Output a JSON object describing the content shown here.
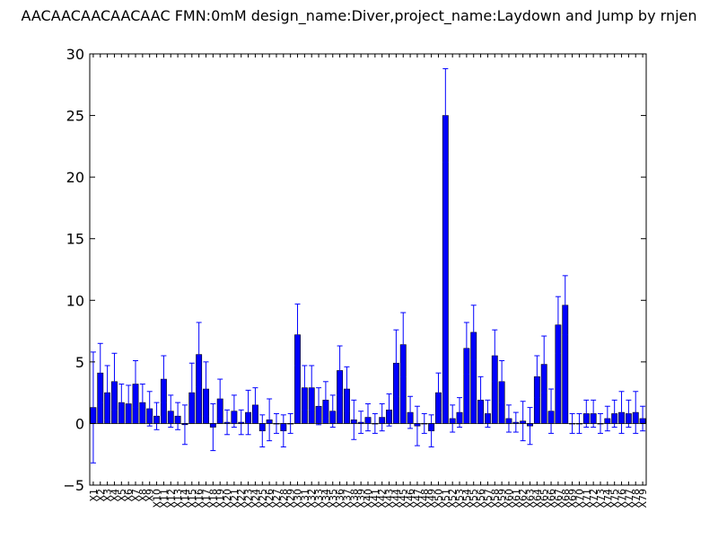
{
  "chart_data": {
    "type": "bar",
    "title": "AACAACAACAACAAC  FMN:0mM  design_name:Diver,project_name:Laydown and Jump by rnjen",
    "xlabel": "",
    "ylabel": "",
    "ylim": [
      -5,
      30
    ],
    "yticks": [
      -5,
      0,
      5,
      10,
      15,
      20,
      25,
      30
    ],
    "grid": false,
    "bar_color": "#0000ff",
    "error_color": "#0000ff",
    "categories": [
      "X1",
      "X2",
      "X3",
      "X4",
      "X5",
      "X6",
      "X7",
      "X8",
      "X9",
      "X10",
      "X11",
      "X12",
      "X13",
      "X14",
      "X15",
      "X16",
      "X17",
      "X18",
      "X19",
      "X20",
      "X21",
      "X22",
      "X23",
      "X24",
      "X25",
      "X26",
      "X27",
      "X28",
      "X29",
      "X30",
      "X31",
      "X32",
      "X33",
      "X34",
      "X35",
      "X36",
      "X37",
      "X38",
      "X39",
      "X40",
      "X41",
      "X42",
      "X43",
      "X44",
      "X45",
      "X46",
      "X47",
      "X48",
      "X49",
      "X50",
      "X51",
      "X52",
      "X53",
      "X54",
      "X55",
      "X56",
      "X57",
      "X58",
      "X59",
      "X60",
      "X61",
      "X62",
      "X63",
      "X64",
      "X65",
      "X66",
      "X67",
      "X68",
      "X69",
      "X70",
      "X71",
      "X72",
      "X73",
      "X74",
      "X75",
      "X76",
      "X77",
      "X78",
      "X79"
    ],
    "values": [
      1.3,
      4.1,
      2.5,
      3.4,
      1.7,
      1.6,
      3.2,
      1.7,
      1.2,
      0.6,
      3.6,
      1.0,
      0.6,
      -0.1,
      2.5,
      5.6,
      2.8,
      -0.3,
      2.0,
      0.1,
      1.0,
      0.1,
      0.9,
      1.5,
      -0.6,
      0.3,
      0.0,
      -0.6,
      0.0,
      7.2,
      2.9,
      2.9,
      1.4,
      1.9,
      1.0,
      4.3,
      2.8,
      0.3,
      0.1,
      0.5,
      0.0,
      0.5,
      1.1,
      4.9,
      6.4,
      0.9,
      -0.2,
      0.0,
      -0.6,
      2.5,
      25.0,
      0.4,
      0.9,
      6.1,
      7.4,
      1.9,
      0.8,
      5.5,
      3.4,
      0.4,
      0.1,
      0.2,
      -0.2,
      3.8,
      4.8,
      1.0,
      8.0,
      9.6,
      0.0,
      0.0,
      0.8,
      0.8,
      0.0,
      0.4,
      0.8,
      0.9,
      0.8,
      0.9,
      0.4
    ],
    "errors": [
      4.5,
      2.4,
      2.2,
      2.3,
      1.5,
      1.5,
      1.9,
      1.5,
      1.4,
      1.1,
      1.9,
      1.3,
      1.1,
      1.6,
      2.4,
      2.6,
      2.2,
      1.9,
      1.6,
      1.0,
      1.3,
      1.0,
      1.8,
      1.4,
      1.3,
      1.7,
      0.8,
      1.3,
      0.8,
      2.5,
      1.8,
      1.8,
      1.5,
      1.5,
      1.3,
      2.0,
      1.8,
      1.6,
      0.9,
      1.1,
      0.8,
      1.1,
      1.3,
      2.7,
      2.6,
      1.3,
      1.6,
      0.8,
      1.3,
      1.6,
      3.8,
      1.1,
      1.2,
      2.1,
      2.2,
      1.9,
      1.1,
      2.1,
      1.7,
      1.1,
      0.8,
      1.6,
      1.5,
      1.7,
      2.3,
      1.8,
      2.3,
      2.4,
      0.8,
      0.8,
      1.1,
      1.1,
      0.8,
      1.0,
      1.1,
      1.7,
      1.1,
      1.7,
      1.0
    ]
  }
}
